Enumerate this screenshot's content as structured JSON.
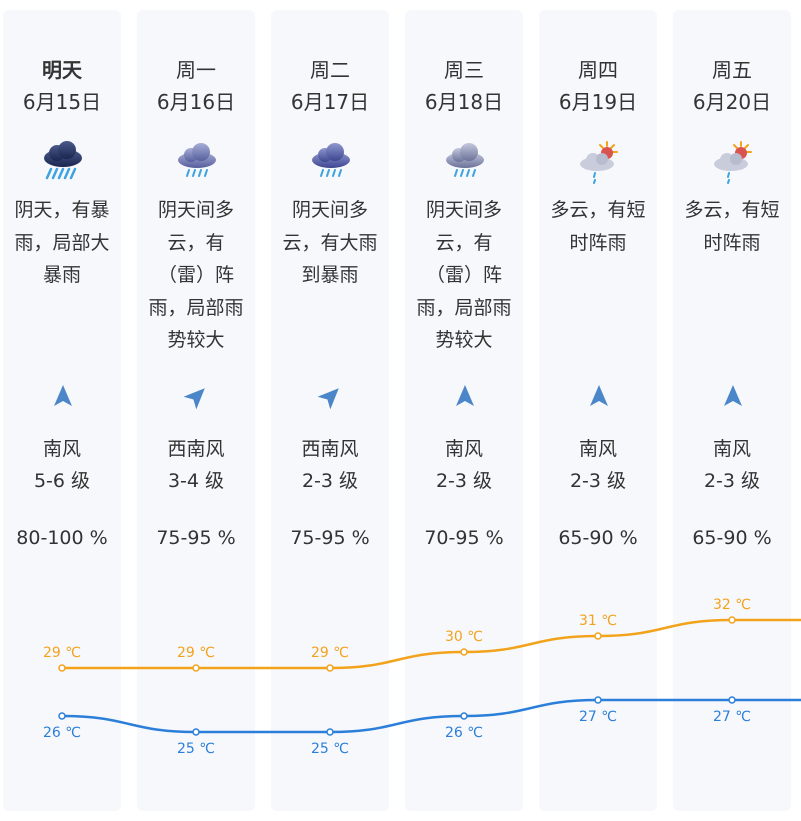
{
  "days": [
    {
      "day": "明天",
      "date": "6月15日",
      "icon": "heavy-rain-icon",
      "desc": [
        "阴天，有暴",
        "雨，局部大",
        "暴雨"
      ],
      "wind_dir": "南风",
      "wind_level": "5-6 级",
      "humidity": "80-100 %"
    },
    {
      "day": "周一",
      "date": "6月16日",
      "icon": "rain-icon",
      "desc": [
        "阴天间多",
        "云，有",
        "（雷）阵",
        "雨，局部雨",
        "势较大"
      ],
      "wind_dir": "西南风",
      "wind_level": "3-4 级",
      "humidity": "75-95 %"
    },
    {
      "day": "周二",
      "date": "6月17日",
      "icon": "rain-icon",
      "desc": [
        "阴天间多",
        "云，有大雨",
        "到暴雨"
      ],
      "wind_dir": "西南风",
      "wind_level": "2-3 级",
      "humidity": "75-95 %"
    },
    {
      "day": "周三",
      "date": "6月18日",
      "icon": "rain-icon",
      "desc": [
        "阴天间多",
        "云，有",
        "（雷）阵",
        "雨，局部雨",
        "势较大"
      ],
      "wind_dir": "南风",
      "wind_level": "2-3 级",
      "humidity": "70-95 %"
    },
    {
      "day": "周四",
      "date": "6月19日",
      "icon": "partly-cloudy-shower-icon",
      "desc": [
        "多云，有短",
        "时阵雨"
      ],
      "wind_dir": "南风",
      "wind_level": "2-3 级",
      "humidity": "65-90 %"
    },
    {
      "day": "周五",
      "date": "6月20日",
      "icon": "partly-cloudy-shower-icon",
      "desc": [
        "多云，有短",
        "时阵雨"
      ],
      "wind_dir": "南风",
      "wind_level": "2-3 级",
      "humidity": "65-90 %"
    }
  ],
  "chart_data": {
    "type": "line",
    "categories": [
      "6月15日",
      "6月16日",
      "6月17日",
      "6月18日",
      "6月19日",
      "6月20日"
    ],
    "unit": "℃",
    "series": [
      {
        "values": [
          29,
          29,
          29,
          30,
          31,
          32
        ],
        "labels": [
          "29 ℃",
          "29 ℃",
          "29 ℃",
          "30 ℃",
          "31 ℃",
          "32 ℃"
        ],
        "color": "#f2a31b"
      },
      {
        "values": [
          26,
          25,
          25,
          26,
          27,
          27
        ],
        "labels": [
          "26 ℃",
          "25 ℃",
          "25 ℃",
          "26 ℃",
          "27 ℃",
          "27 ℃"
        ],
        "color": "#2b7fd9"
      }
    ]
  }
}
